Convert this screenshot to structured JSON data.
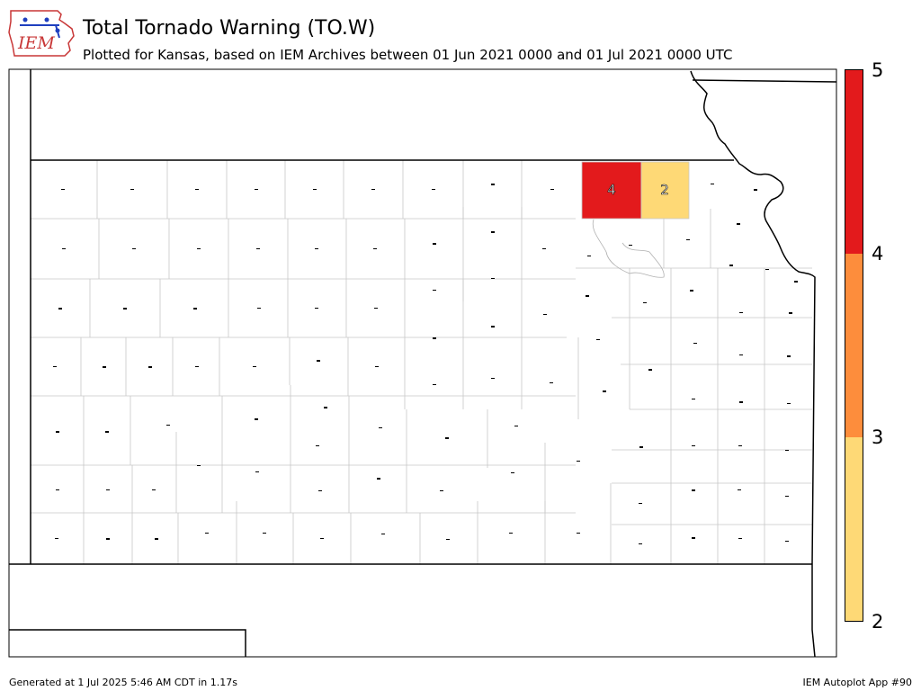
{
  "header": {
    "title": "Total Tornado Warning (TO.W)",
    "subtitle": "Plotted for Kansas, based on IEM Archives  between 01 Jun 2021 0000 and 01 Jul 2021 0000 UTC"
  },
  "logo": {
    "text": "IEM"
  },
  "legend": {
    "ticks": [
      "5",
      "4",
      "3",
      "2"
    ],
    "colors": [
      "#e31a1c",
      "#fd8d3c",
      "#fed976"
    ]
  },
  "counties": [
    {
      "value": "4",
      "fill": "#e31a1c"
    },
    {
      "value": "2",
      "fill": "#fed976"
    }
  ],
  "footer": {
    "left": "Generated at 1 Jul 2025 5:46 AM CDT in 1.17s",
    "right": "IEM Autoplot App #90"
  }
}
